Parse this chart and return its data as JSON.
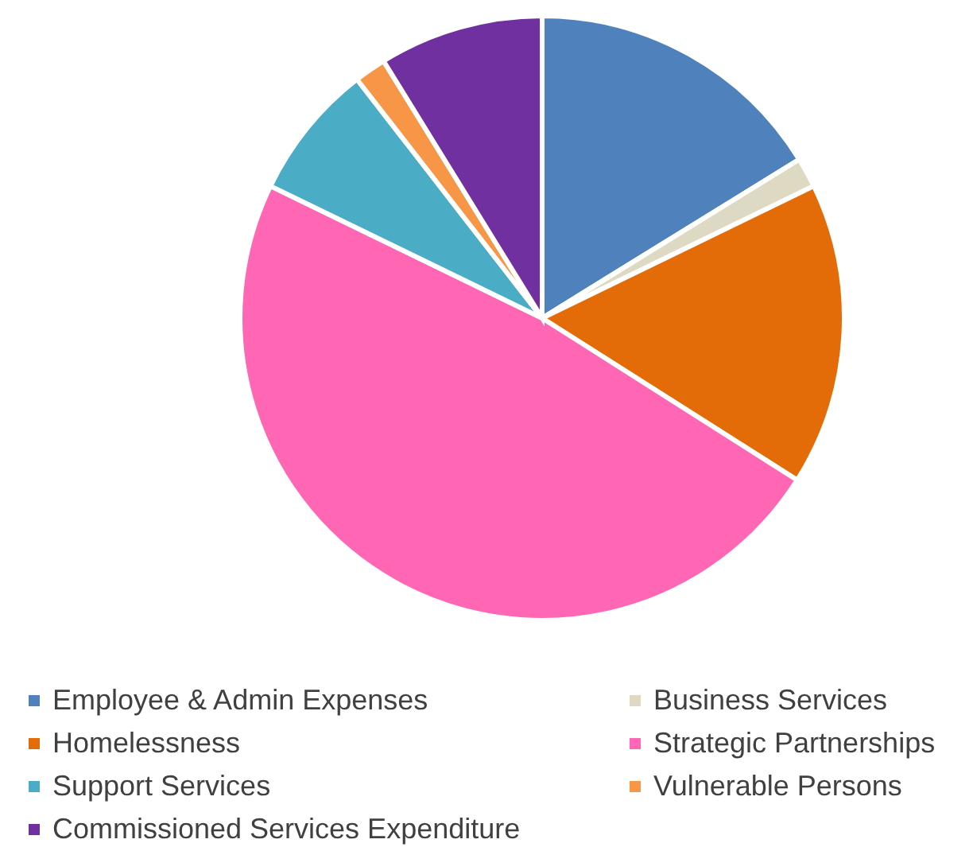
{
  "chart_data": {
    "type": "pie",
    "categories": [
      "Employee & Admin Expenses",
      "Business Services",
      "Homelessness",
      "Strategic Partnerships",
      "Support Services",
      "Vulnerable Persons",
      "Commissioned Services Expenditure"
    ],
    "values": [
      16.2,
      1.6,
      16.2,
      48.2,
      7.3,
      1.7,
      8.8
    ],
    "colors": [
      "#4f81bd",
      "#ddd9c3",
      "#e36c09",
      "#ff66b3",
      "#4bacc6",
      "#f79646",
      "#7030a0"
    ],
    "legend": "bottom"
  }
}
